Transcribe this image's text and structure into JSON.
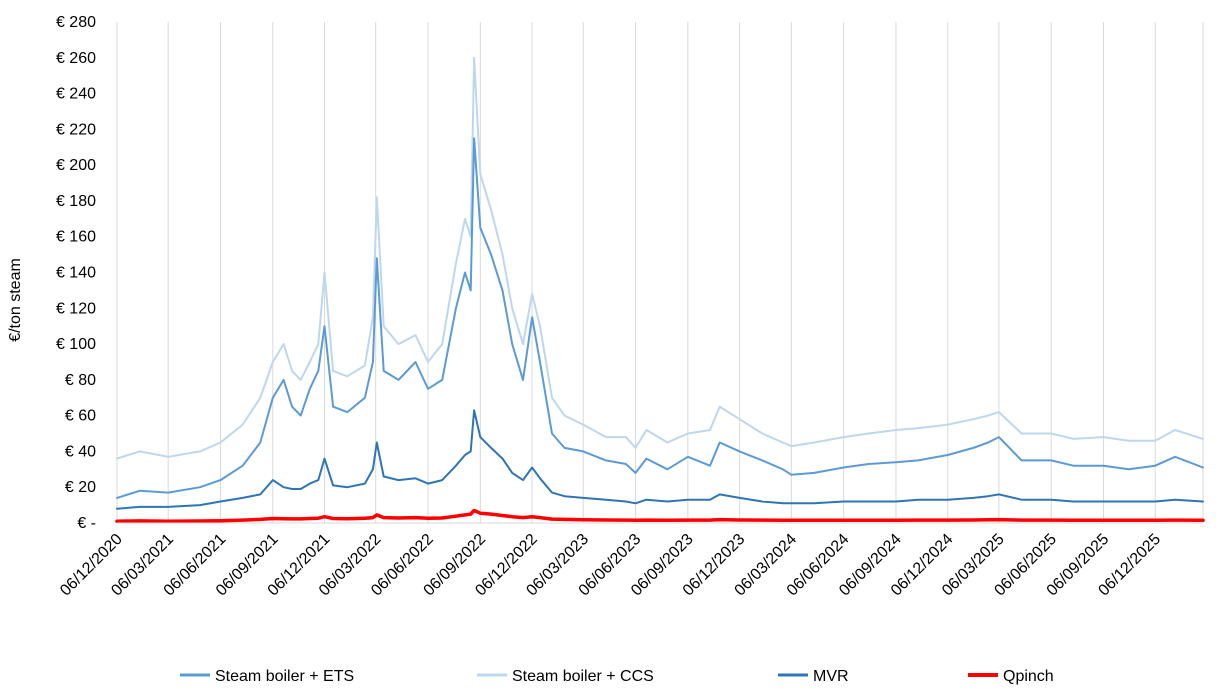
{
  "chart_data": {
    "type": "line",
    "title": "",
    "xlabel": "",
    "ylabel": "€/ton steam",
    "ylim": [
      0,
      280
    ],
    "y_ticks": [
      0,
      20,
      40,
      60,
      80,
      100,
      120,
      140,
      160,
      180,
      200,
      220,
      240,
      260,
      280
    ],
    "y_tick_labels": [
      "€ -",
      "€ 20",
      "€ 40",
      "€ 60",
      "€ 80",
      "€ 100",
      "€ 120",
      "€ 140",
      "€ 160",
      "€ 180",
      "€ 200",
      "€ 220",
      "€ 240",
      "€ 260",
      "€ 280"
    ],
    "xlim": [
      "2020-12-06",
      "2026-02-28"
    ],
    "x_tick_labels": [
      "06/12/2020",
      "06/03/2021",
      "06/06/2021",
      "06/09/2021",
      "06/12/2021",
      "06/03/2022",
      "06/06/2022",
      "06/09/2022",
      "06/12/2022",
      "06/03/2023",
      "06/06/2023",
      "06/09/2023",
      "06/12/2023",
      "06/03/2024",
      "06/06/2024",
      "06/09/2024",
      "06/12/2024",
      "06/03/2025",
      "06/06/2025",
      "06/09/2025",
      "06/12/2025"
    ],
    "x_tick_dates": [
      "2020-12-06",
      "2021-03-06",
      "2021-06-06",
      "2021-09-06",
      "2021-12-06",
      "2022-03-06",
      "2022-06-06",
      "2022-09-06",
      "2022-12-06",
      "2023-03-06",
      "2023-06-06",
      "2023-09-06",
      "2023-12-06",
      "2024-03-06",
      "2024-06-06",
      "2024-09-06",
      "2024-12-06",
      "2025-03-06",
      "2025-06-06",
      "2025-09-06",
      "2025-12-06"
    ],
    "grid": "vertical",
    "legend_position": "bottom",
    "x": [
      "2020-12-06",
      "2021-01-15",
      "2021-03-06",
      "2021-05-01",
      "2021-06-06",
      "2021-07-15",
      "2021-08-15",
      "2021-09-06",
      "2021-09-25",
      "2021-10-10",
      "2021-10-25",
      "2021-11-10",
      "2021-11-25",
      "2021-12-06",
      "2021-12-21",
      "2022-01-15",
      "2022-02-15",
      "2022-03-01",
      "2022-03-08",
      "2022-03-20",
      "2022-04-15",
      "2022-05-15",
      "2022-06-06",
      "2022-07-01",
      "2022-07-25",
      "2022-08-10",
      "2022-08-20",
      "2022-08-26",
      "2022-09-06",
      "2022-09-25",
      "2022-10-15",
      "2022-11-01",
      "2022-11-20",
      "2022-12-06",
      "2022-12-20",
      "2023-01-10",
      "2023-02-01",
      "2023-03-06",
      "2023-04-15",
      "2023-05-20",
      "2023-06-06",
      "2023-06-25",
      "2023-08-01",
      "2023-09-06",
      "2023-10-15",
      "2023-11-01",
      "2023-12-06",
      "2024-01-15",
      "2024-02-20",
      "2024-03-06",
      "2024-04-15",
      "2024-06-06",
      "2024-07-20",
      "2024-09-06",
      "2024-10-15",
      "2024-12-06",
      "2025-01-20",
      "2025-02-15",
      "2025-03-06",
      "2025-04-15",
      "2025-06-06",
      "2025-07-15",
      "2025-09-06",
      "2025-10-20",
      "2025-12-06",
      "2026-01-10",
      "2026-02-28"
    ],
    "series": [
      {
        "name": "Steam boiler + ETS",
        "color": "#5b9bd5",
        "values": [
          14,
          18,
          17,
          20,
          24,
          32,
          45,
          70,
          80,
          65,
          60,
          75,
          85,
          110,
          65,
          62,
          70,
          90,
          148,
          85,
          80,
          90,
          75,
          80,
          120,
          140,
          130,
          215,
          165,
          150,
          130,
          100,
          80,
          115,
          90,
          50,
          42,
          40,
          35,
          33,
          28,
          36,
          30,
          37,
          32,
          45,
          40,
          35,
          30,
          27,
          28,
          31,
          33,
          34,
          35,
          38,
          42,
          45,
          48,
          35,
          35,
          32,
          32,
          30,
          32,
          37,
          31
        ]
      },
      {
        "name": "Steam boiler + CCS",
        "color": "#bdd7ee",
        "values": [
          36,
          40,
          37,
          40,
          45,
          55,
          70,
          90,
          100,
          85,
          80,
          90,
          100,
          140,
          85,
          82,
          88,
          115,
          182,
          110,
          100,
          105,
          90,
          100,
          145,
          170,
          160,
          260,
          195,
          175,
          150,
          120,
          100,
          128,
          110,
          70,
          60,
          55,
          48,
          48,
          42,
          52,
          45,
          50,
          52,
          65,
          58,
          50,
          45,
          43,
          45,
          48,
          50,
          52,
          53,
          55,
          58,
          60,
          62,
          50,
          50,
          47,
          48,
          46,
          46,
          52,
          47
        ]
      },
      {
        "name": "MVR",
        "color": "#2e75b6",
        "values": [
          8,
          9,
          9,
          10,
          12,
          14,
          16,
          24,
          20,
          19,
          19,
          22,
          24,
          36,
          21,
          20,
          22,
          30,
          45,
          26,
          24,
          25,
          22,
          24,
          32,
          38,
          40,
          63,
          48,
          42,
          36,
          28,
          24,
          31,
          25,
          17,
          15,
          14,
          13,
          12,
          11,
          13,
          12,
          13,
          13,
          16,
          14,
          12,
          11,
          11,
          11,
          12,
          12,
          12,
          13,
          13,
          14,
          15,
          16,
          13,
          13,
          12,
          12,
          12,
          12,
          13,
          12
        ]
      },
      {
        "name": "Qpinch",
        "color": "#ff0000",
        "values": [
          1.0,
          1.2,
          1.0,
          1.1,
          1.3,
          1.6,
          2.0,
          2.5,
          2.4,
          2.3,
          2.3,
          2.5,
          2.7,
          3.5,
          2.5,
          2.4,
          2.6,
          3.0,
          4.5,
          3.0,
          2.8,
          3.0,
          2.6,
          2.8,
          3.8,
          4.5,
          5.0,
          7.0,
          5.5,
          5.0,
          4.2,
          3.5,
          3.0,
          3.5,
          3.0,
          2.2,
          2.0,
          1.8,
          1.7,
          1.6,
          1.5,
          1.6,
          1.5,
          1.6,
          1.6,
          1.9,
          1.7,
          1.6,
          1.5,
          1.5,
          1.5,
          1.5,
          1.5,
          1.5,
          1.6,
          1.6,
          1.7,
          1.8,
          1.9,
          1.6,
          1.6,
          1.5,
          1.5,
          1.5,
          1.5,
          1.6,
          1.5
        ]
      }
    ]
  }
}
